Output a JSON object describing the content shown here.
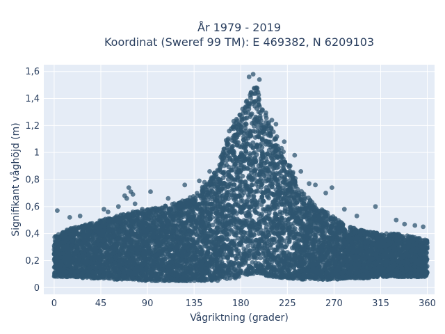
{
  "chart_data": {
    "type": "scatter",
    "title_lines": [
      "År 1979 - 2019",
      "Koordinat (Sweref 99 TM): E 469382, N 6209103"
    ],
    "xlabel": "Vågriktning (grader)",
    "ylabel": "Signifikant våghöjd (m)",
    "xlim": [
      -10,
      367
    ],
    "ylim": [
      -0.05,
      1.65
    ],
    "x_ticks": [
      0,
      45,
      90,
      135,
      180,
      225,
      270,
      315,
      360
    ],
    "x_tick_labels": [
      "0",
      "45",
      "90",
      "135",
      "180",
      "225",
      "270",
      "315",
      "360"
    ],
    "y_ticks": [
      0,
      0.2,
      0.4,
      0.6,
      0.8,
      1.0,
      1.2,
      1.4,
      1.6
    ],
    "y_tick_labels": [
      "0",
      "0,2",
      "0,4",
      "0,6",
      "0,8",
      "1",
      "1,2",
      "1,4",
      "1,6"
    ],
    "grid": true,
    "legend": "none",
    "colors": {
      "marker": "#2f5570",
      "plot_bg": "#e5ecf6",
      "text": "#2a3f5f"
    },
    "envelope": {
      "x": [
        0,
        10,
        20,
        30,
        45,
        60,
        75,
        90,
        105,
        120,
        135,
        150,
        160,
        170,
        180,
        190,
        195,
        200,
        210,
        225,
        240,
        255,
        270,
        285,
        300,
        315,
        330,
        345,
        360
      ],
      "y_min": [
        0.08,
        0.08,
        0.08,
        0.07,
        0.07,
        0.06,
        0.06,
        0.05,
        0.05,
        0.05,
        0.05,
        0.05,
        0.05,
        0.06,
        0.08,
        0.1,
        0.1,
        0.09,
        0.08,
        0.07,
        0.06,
        0.06,
        0.06,
        0.07,
        0.07,
        0.08,
        0.08,
        0.08,
        0.08
      ],
      "y_max": [
        0.38,
        0.42,
        0.45,
        0.47,
        0.5,
        0.53,
        0.56,
        0.58,
        0.6,
        0.63,
        0.68,
        0.8,
        0.95,
        1.2,
        1.3,
        1.45,
        1.5,
        1.38,
        1.2,
        0.95,
        0.7,
        0.6,
        0.52,
        0.45,
        0.42,
        0.4,
        0.4,
        0.38,
        0.35
      ]
    },
    "outliers": [
      {
        "x": 3,
        "y": 0.57
      },
      {
        "x": 15,
        "y": 0.52
      },
      {
        "x": 25,
        "y": 0.53
      },
      {
        "x": 48,
        "y": 0.58
      },
      {
        "x": 52,
        "y": 0.56
      },
      {
        "x": 62,
        "y": 0.6
      },
      {
        "x": 68,
        "y": 0.68
      },
      {
        "x": 70,
        "y": 0.66
      },
      {
        "x": 72,
        "y": 0.74
      },
      {
        "x": 74,
        "y": 0.71
      },
      {
        "x": 76,
        "y": 0.69
      },
      {
        "x": 78,
        "y": 0.62
      },
      {
        "x": 85,
        "y": 0.58
      },
      {
        "x": 93,
        "y": 0.71
      },
      {
        "x": 110,
        "y": 0.66
      },
      {
        "x": 126,
        "y": 0.76
      },
      {
        "x": 140,
        "y": 0.79
      },
      {
        "x": 145,
        "y": 0.78
      },
      {
        "x": 150,
        "y": 0.86
      },
      {
        "x": 188,
        "y": 1.56
      },
      {
        "x": 192,
        "y": 1.58
      },
      {
        "x": 198,
        "y": 1.54
      },
      {
        "x": 210,
        "y": 1.24
      },
      {
        "x": 214,
        "y": 1.21
      },
      {
        "x": 222,
        "y": 1.08
      },
      {
        "x": 232,
        "y": 0.98
      },
      {
        "x": 238,
        "y": 0.86
      },
      {
        "x": 246,
        "y": 0.77
      },
      {
        "x": 252,
        "y": 0.76
      },
      {
        "x": 262,
        "y": 0.7
      },
      {
        "x": 268,
        "y": 0.74
      },
      {
        "x": 280,
        "y": 0.58
      },
      {
        "x": 292,
        "y": 0.53
      },
      {
        "x": 310,
        "y": 0.6
      },
      {
        "x": 330,
        "y": 0.5
      },
      {
        "x": 338,
        "y": 0.47
      },
      {
        "x": 348,
        "y": 0.46
      },
      {
        "x": 356,
        "y": 0.45
      }
    ]
  }
}
